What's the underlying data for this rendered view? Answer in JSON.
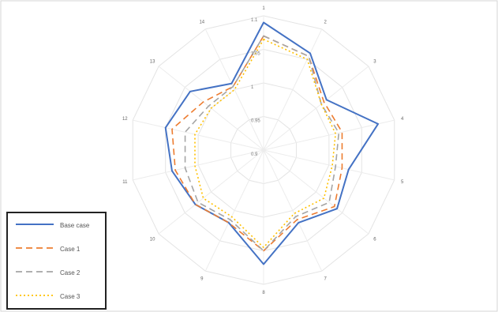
{
  "chart_data": {
    "type": "radar",
    "title": "",
    "categories": [
      "1",
      "2",
      "3",
      "4",
      "5",
      "6",
      "7",
      "8",
      "9",
      "10",
      "11",
      "12",
      "13",
      "14"
    ],
    "rlim": [
      0.9,
      1.1
    ],
    "rticks": [
      "0.9",
      "0.95",
      "1",
      "1.05",
      "1.1"
    ],
    "grid": true,
    "legend_position": "bottom-left",
    "series": [
      {
        "name": "Base case",
        "color": "#4472c4",
        "dash": "solid",
        "values": [
          1.09,
          1.06,
          1.02,
          1.075,
          1.03,
          1.04,
          1.02,
          1.07,
          1.02,
          1.03,
          1.04,
          1.05,
          1.04,
          1.01
        ]
      },
      {
        "name": "Case 1",
        "color": "#ed7d31",
        "dash": "dashed",
        "values": [
          1.07,
          1.055,
          1.015,
          1.02,
          1.02,
          1.035,
          1.015,
          1.05,
          1.02,
          1.03,
          1.035,
          1.04,
          1.015,
          1.005
        ]
      },
      {
        "name": "Case 2",
        "color": "#a5a5a5",
        "dash": "dashed",
        "values": [
          1.07,
          1.055,
          1.01,
          1.015,
          1.01,
          1.025,
          1.01,
          1.05,
          1.015,
          1.025,
          1.02,
          1.02,
          1.005,
          1.005
        ]
      },
      {
        "name": "Case 3",
        "color": "#ffc000",
        "dash": "dotted",
        "values": [
          1.065,
          1.05,
          1.01,
          1.01,
          1.005,
          1.015,
          1.005,
          1.045,
          1.01,
          1.015,
          1.005,
          1.005,
          1.0,
          1.0
        ]
      }
    ]
  }
}
